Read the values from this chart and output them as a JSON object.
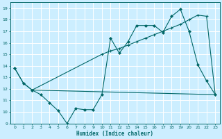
{
  "title": "",
  "xlabel": "Humidex (Indice chaleur)",
  "bg_color": "#cceeff",
  "grid_color": "#ffffff",
  "line_color": "#006666",
  "xlim": [
    -0.5,
    23.5
  ],
  "ylim": [
    9.0,
    19.5
  ],
  "yticks": [
    9,
    10,
    11,
    12,
    13,
    14,
    15,
    16,
    17,
    18,
    19
  ],
  "xticks": [
    0,
    1,
    2,
    3,
    4,
    5,
    6,
    7,
    8,
    9,
    10,
    11,
    12,
    13,
    14,
    15,
    16,
    17,
    18,
    19,
    20,
    21,
    22,
    23
  ],
  "line1_x": [
    0,
    1,
    2,
    3,
    4,
    5,
    6,
    7,
    8,
    9,
    10,
    11,
    12,
    13,
    14,
    15,
    16,
    17,
    18,
    19,
    20,
    21,
    22,
    23
  ],
  "line1_y": [
    13.8,
    12.5,
    11.9,
    11.5,
    10.8,
    10.1,
    9.0,
    10.3,
    10.2,
    10.2,
    11.5,
    16.4,
    15.1,
    16.1,
    17.5,
    17.5,
    17.5,
    16.9,
    18.3,
    18.9,
    17.0,
    14.1,
    12.7,
    11.5
  ],
  "line2_x": [
    0,
    1,
    2,
    10,
    11,
    12,
    13,
    14,
    15,
    16,
    17,
    18,
    19,
    20,
    21,
    22,
    23
  ],
  "line2_y": [
    13.8,
    12.5,
    11.9,
    15.0,
    15.3,
    15.5,
    15.8,
    16.1,
    16.4,
    16.7,
    17.0,
    17.3,
    17.6,
    18.0,
    18.4,
    18.3,
    11.5
  ],
  "line3_x": [
    2,
    23
  ],
  "line3_y": [
    11.9,
    11.5
  ]
}
